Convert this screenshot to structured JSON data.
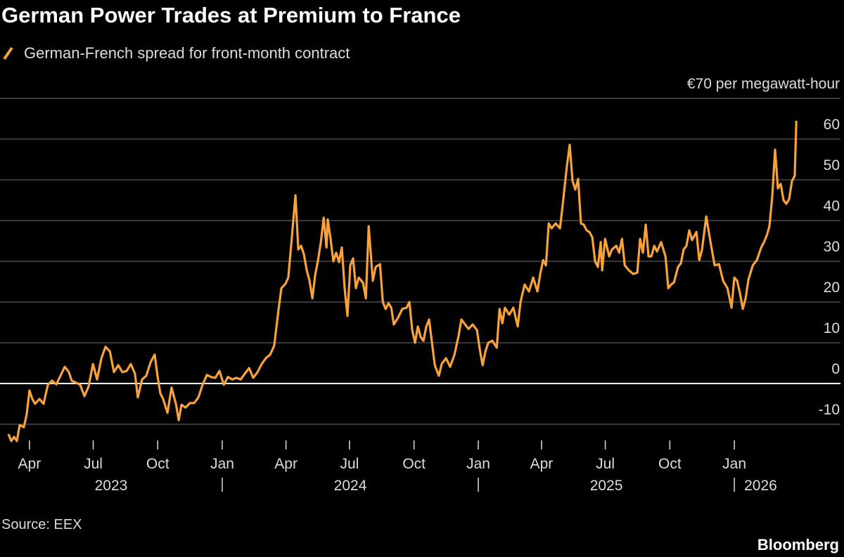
{
  "chart_data": {
    "type": "line",
    "title": "German Power Trades at Premium to France",
    "source": "Source: EEX",
    "brand": "Bloomberg",
    "x": [
      2023.165,
      2023.176,
      2023.187,
      2023.198,
      2023.209,
      2023.225,
      2023.236,
      2023.247,
      2023.258,
      2023.269,
      2023.286,
      2023.302,
      2023.319,
      2023.335,
      2023.352,
      2023.368,
      2023.385,
      2023.401,
      2023.412,
      2023.429,
      2023.445,
      2023.462,
      2023.478,
      2023.495,
      2023.511,
      2023.528,
      2023.544,
      2023.561,
      2023.577,
      2023.594,
      2023.61,
      2023.627,
      2023.643,
      2023.659,
      2023.67,
      2023.687,
      2023.703,
      2023.72,
      2023.736,
      2023.747,
      2023.758,
      2023.769,
      2023.786,
      2023.802,
      2023.819,
      2023.83,
      2023.841,
      2023.857,
      2023.874,
      2023.89,
      2023.907,
      2023.923,
      2023.94,
      2023.956,
      2023.973,
      2023.989,
      2024.006,
      2024.022,
      2024.039,
      2024.055,
      2024.072,
      2024.088,
      2024.105,
      2024.121,
      2024.138,
      2024.154,
      2024.17,
      2024.187,
      2024.203,
      2024.22,
      2024.231,
      2024.247,
      2024.258,
      2024.269,
      2024.286,
      2024.297,
      2024.308,
      2024.319,
      2024.33,
      2024.341,
      2024.352,
      2024.363,
      2024.374,
      2024.385,
      2024.396,
      2024.407,
      2024.412,
      2024.423,
      2024.434,
      2024.445,
      2024.456,
      2024.467,
      2024.478,
      2024.489,
      2024.5,
      2024.511,
      2024.522,
      2024.533,
      2024.55,
      2024.561,
      2024.572,
      2024.588,
      2024.599,
      2024.616,
      2024.627,
      2024.638,
      2024.649,
      2024.66,
      2024.67,
      2024.687,
      2024.703,
      2024.72,
      2024.731,
      2024.742,
      2024.753,
      2024.764,
      2024.775,
      2024.786,
      2024.797,
      2024.808,
      2024.819,
      2024.83,
      2024.846,
      2024.857,
      2024.874,
      2024.89,
      2024.907,
      2024.923,
      2024.934,
      2024.945,
      2024.962,
      2024.978,
      2024.995,
      2025.006,
      2025.017,
      2025.028,
      2025.039,
      2025.055,
      2025.072,
      2025.083,
      2025.094,
      2025.104,
      2025.121,
      2025.137,
      2025.154,
      2025.165,
      2025.181,
      2025.198,
      2025.214,
      2025.231,
      2025.242,
      2025.253,
      2025.264,
      2025.275,
      2025.286,
      2025.302,
      2025.319,
      2025.33,
      2025.346,
      2025.357,
      2025.368,
      2025.379,
      2025.39,
      2025.401,
      2025.412,
      2025.423,
      2025.434,
      2025.445,
      2025.456,
      2025.467,
      2025.478,
      2025.484,
      2025.495,
      2025.511,
      2025.522,
      2025.539,
      2025.55,
      2025.561,
      2025.572,
      2025.588,
      2025.605,
      2025.621,
      2025.632,
      2025.643,
      2025.654,
      2025.665,
      2025.676,
      2025.687,
      2025.698,
      2025.714,
      2025.731,
      2025.742,
      2025.753,
      2025.764,
      2025.78,
      2025.791,
      2025.802,
      2025.813,
      2025.824,
      2025.835,
      2025.852,
      2025.863,
      2025.874,
      2025.89,
      2025.907,
      2025.923,
      2025.94,
      2025.956,
      2025.973,
      2025.989,
      2026.0,
      2026.011,
      2026.022,
      2026.033,
      2026.044,
      2026.055,
      2026.072,
      2026.088,
      2026.105,
      2026.116,
      2026.127,
      2026.137,
      2026.148,
      2026.159,
      2026.17,
      2026.181,
      2026.192,
      2026.203,
      2026.214,
      2026.225,
      2026.236,
      2026.242
    ],
    "series": [
      {
        "name": "German-French spread for front-month contract",
        "color": "#f7a23b",
        "values": [
          -12.4,
          -14.1,
          -13.1,
          -14.1,
          -10.2,
          -10.7,
          -7.6,
          -1.7,
          -3.8,
          -5.0,
          -3.8,
          -5.0,
          -0.3,
          0.7,
          -0.2,
          1.9,
          4.1,
          2.8,
          0.7,
          0.2,
          -0.3,
          -3.1,
          -0.7,
          4.8,
          1.0,
          6.2,
          9.0,
          7.9,
          2.8,
          4.5,
          2.8,
          3.1,
          4.8,
          2.4,
          -3.4,
          1.0,
          1.9,
          5.2,
          7.1,
          1.9,
          -2.4,
          -3.8,
          -7.2,
          -1.0,
          -5.0,
          -9.0,
          -5.2,
          -5.9,
          -4.8,
          -4.8,
          -3.4,
          -0.3,
          2.1,
          1.6,
          1.4,
          3.1,
          -0.3,
          1.6,
          1.0,
          1.4,
          1.0,
          2.4,
          3.8,
          1.4,
          2.8,
          4.8,
          6.2,
          7.1,
          9.3,
          18.3,
          23.4,
          24.5,
          26.0,
          33.8,
          46.2,
          32.9,
          33.8,
          31.7,
          27.8,
          25.2,
          20.9,
          26.6,
          30.3,
          34.7,
          40.7,
          33.4,
          40.3,
          35.5,
          30.0,
          32.1,
          29.8,
          33.4,
          23.4,
          16.6,
          29.0,
          30.7,
          23.4,
          26.0,
          24.7,
          20.9,
          38.6,
          25.2,
          28.6,
          29.3,
          20.0,
          18.3,
          19.7,
          18.6,
          14.5,
          16.2,
          18.3,
          18.6,
          20.0,
          13.1,
          10.0,
          14.0,
          11.4,
          10.5,
          14.0,
          15.7,
          10.0,
          4.5,
          1.9,
          4.8,
          6.2,
          4.1,
          7.1,
          11.7,
          15.7,
          14.8,
          13.4,
          14.5,
          13.1,
          8.3,
          4.5,
          7.9,
          10.0,
          10.5,
          8.8,
          18.3,
          14.8,
          18.6,
          16.9,
          18.6,
          14.0,
          20.0,
          24.3,
          22.6,
          26.0,
          22.6,
          26.9,
          30.3,
          29.0,
          39.3,
          38.1,
          39.3,
          38.1,
          44.1,
          53.4,
          58.6,
          49.7,
          47.6,
          50.2,
          39.3,
          39.0,
          37.6,
          37.2,
          35.9,
          30.0,
          28.6,
          34.7,
          27.8,
          35.5,
          31.2,
          32.9,
          33.8,
          32.1,
          35.5,
          29.0,
          27.8,
          26.9,
          27.2,
          35.5,
          32.1,
          39.0,
          31.2,
          31.2,
          33.8,
          32.4,
          34.7,
          31.2,
          23.4,
          24.3,
          24.8,
          28.6,
          29.5,
          32.9,
          33.8,
          37.6,
          35.2,
          37.2,
          30.3,
          32.9,
          41.0,
          34.7,
          29.0,
          29.3,
          25.2,
          23.4,
          18.6,
          26.0,
          25.2,
          22.1,
          18.3,
          20.9,
          25.5,
          29.0,
          30.3,
          33.4,
          34.7,
          36.4,
          38.6,
          45.9,
          57.4,
          47.9,
          49.0,
          45.0,
          44.1,
          45.3,
          49.7,
          51.0,
          64.5
        ]
      }
    ],
    "xlim": [
      2023.132,
      2026.42
    ],
    "xticks": [
      {
        "value": 2023.247,
        "label": "Apr"
      },
      {
        "value": 2023.496,
        "label": "Jul"
      },
      {
        "value": 2023.748,
        "label": "Oct"
      },
      {
        "value": 2024.0,
        "label": "Jan"
      },
      {
        "value": 2024.249,
        "label": "Apr"
      },
      {
        "value": 2024.497,
        "label": "Jul"
      },
      {
        "value": 2024.749,
        "label": "Oct"
      },
      {
        "value": 2025.0,
        "label": "Jan"
      },
      {
        "value": 2025.247,
        "label": "Apr"
      },
      {
        "value": 2025.496,
        "label": "Jul"
      },
      {
        "value": 2025.748,
        "label": "Oct"
      },
      {
        "value": 2026.0,
        "label": "Jan"
      }
    ],
    "years": [
      "2023",
      "2024",
      "2025",
      "2026"
    ],
    "ylim": [
      -15,
      75
    ],
    "yticks": [
      {
        "value": 70,
        "label": "€70 per megawatt-hour"
      },
      60,
      50,
      40,
      30,
      20,
      10,
      0,
      -10
    ],
    "grid": true
  }
}
